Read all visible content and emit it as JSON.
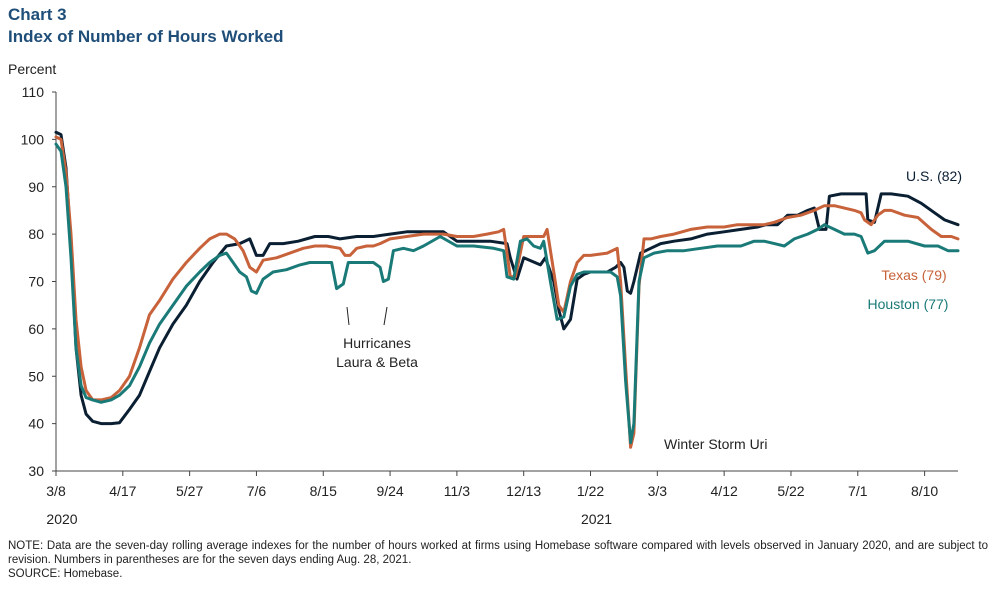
{
  "header": {
    "chart_label": "Chart 3",
    "title": "Index of Number of Hours Worked"
  },
  "colors": {
    "us": "#0b1f33",
    "texas": "#c8623a",
    "houston": "#1a7a78",
    "title": "#1f4e79"
  },
  "footnote": {
    "note": "NOTE: Data are the seven-day rolling average indexes for the number of hours worked at firms using Homebase software compared with levels observed in January 2020, and are subject to revision. Numbers in parentheses are for the seven days ending Aug. 28, 2021.",
    "source": "SOURCE: Homebase."
  },
  "chart_data": {
    "type": "line",
    "ylabel": "Percent",
    "ylim": [
      30,
      110
    ],
    "yticks": [
      30,
      40,
      50,
      60,
      70,
      80,
      90,
      100,
      110
    ],
    "xlim": [
      0,
      540
    ],
    "xticks": [
      {
        "pos": 0,
        "label": "3/8"
      },
      {
        "pos": 40,
        "label": "4/17"
      },
      {
        "pos": 80,
        "label": "5/27"
      },
      {
        "pos": 120,
        "label": "7/6"
      },
      {
        "pos": 160,
        "label": "8/15"
      },
      {
        "pos": 200,
        "label": "9/24"
      },
      {
        "pos": 240,
        "label": "11/3"
      },
      {
        "pos": 280,
        "label": "12/13"
      },
      {
        "pos": 320,
        "label": "1/22"
      },
      {
        "pos": 360,
        "label": "3/3"
      },
      {
        "pos": 400,
        "label": "4/12"
      },
      {
        "pos": 440,
        "label": "5/22"
      },
      {
        "pos": 480,
        "label": "7/1"
      },
      {
        "pos": 520,
        "label": "8/10"
      }
    ],
    "year_labels": [
      {
        "pos": 0,
        "label": "2020"
      },
      {
        "pos": 320,
        "label": "2021"
      }
    ],
    "series": [
      {
        "name": "U.S. (82)",
        "key": "us",
        "points": [
          [
            0,
            101.5
          ],
          [
            3,
            101
          ],
          [
            6,
            94
          ],
          [
            9,
            78
          ],
          [
            12,
            56
          ],
          [
            15,
            46
          ],
          [
            18,
            42
          ],
          [
            22,
            40.5
          ],
          [
            27,
            40
          ],
          [
            33,
            40
          ],
          [
            38,
            40.2
          ],
          [
            44,
            43
          ],
          [
            50,
            46
          ],
          [
            56,
            51
          ],
          [
            62,
            56
          ],
          [
            70,
            61
          ],
          [
            78,
            65
          ],
          [
            86,
            70
          ],
          [
            94,
            74
          ],
          [
            102,
            77.5
          ],
          [
            110,
            78
          ],
          [
            116,
            79
          ],
          [
            120,
            75.5
          ],
          [
            124,
            75.5
          ],
          [
            128,
            78
          ],
          [
            136,
            78
          ],
          [
            145,
            78.5
          ],
          [
            155,
            79.5
          ],
          [
            163,
            79.5
          ],
          [
            170,
            79
          ],
          [
            180,
            79.5
          ],
          [
            190,
            79.5
          ],
          [
            200,
            80
          ],
          [
            210,
            80.5
          ],
          [
            220,
            80.5
          ],
          [
            232,
            80.5
          ],
          [
            240,
            78.5
          ],
          [
            250,
            78.5
          ],
          [
            260,
            78.5
          ],
          [
            270,
            78
          ],
          [
            272,
            75
          ],
          [
            276,
            70.5
          ],
          [
            280,
            75
          ],
          [
            290,
            73.5
          ],
          [
            293,
            75
          ],
          [
            298,
            70
          ],
          [
            301,
            64
          ],
          [
            304,
            60
          ],
          [
            308,
            62
          ],
          [
            312,
            70.5
          ],
          [
            316,
            71.5
          ],
          [
            320,
            72
          ],
          [
            330,
            72
          ],
          [
            335,
            73
          ],
          [
            338,
            74
          ],
          [
            340,
            73
          ],
          [
            342,
            68
          ],
          [
            344,
            67.5
          ],
          [
            346,
            70
          ],
          [
            350,
            76
          ],
          [
            356,
            77
          ],
          [
            362,
            78
          ],
          [
            370,
            78.5
          ],
          [
            380,
            79
          ],
          [
            390,
            80
          ],
          [
            400,
            80.5
          ],
          [
            410,
            81
          ],
          [
            420,
            81.5
          ],
          [
            425,
            82
          ],
          [
            432,
            82
          ],
          [
            438,
            84
          ],
          [
            444,
            84
          ],
          [
            450,
            85
          ],
          [
            454,
            85.5
          ],
          [
            457,
            81
          ],
          [
            461,
            81
          ],
          [
            463,
            88
          ],
          [
            470,
            88.5
          ],
          [
            477,
            88.5
          ],
          [
            482,
            88.5
          ],
          [
            485,
            88.5
          ],
          [
            486,
            83
          ],
          [
            490,
            82.5
          ],
          [
            494,
            88.5
          ],
          [
            500,
            88.5
          ],
          [
            510,
            88
          ],
          [
            518,
            86.5
          ],
          [
            526,
            84.5
          ],
          [
            532,
            83
          ],
          [
            540,
            82
          ]
        ]
      },
      {
        "name": "Texas (79)",
        "key": "texas",
        "points": [
          [
            0,
            100.5
          ],
          [
            3,
            100
          ],
          [
            6,
            93
          ],
          [
            9,
            80
          ],
          [
            12,
            62
          ],
          [
            15,
            52
          ],
          [
            18,
            47
          ],
          [
            22,
            45
          ],
          [
            27,
            45
          ],
          [
            33,
            45.5
          ],
          [
            38,
            47
          ],
          [
            44,
            50
          ],
          [
            50,
            56
          ],
          [
            56,
            63
          ],
          [
            62,
            66
          ],
          [
            70,
            70.5
          ],
          [
            78,
            74
          ],
          [
            86,
            77
          ],
          [
            92,
            79
          ],
          [
            98,
            80
          ],
          [
            102,
            80
          ],
          [
            107,
            79
          ],
          [
            112,
            76.5
          ],
          [
            116,
            73
          ],
          [
            120,
            72
          ],
          [
            124,
            74.5
          ],
          [
            132,
            75
          ],
          [
            140,
            76
          ],
          [
            148,
            77
          ],
          [
            155,
            77.5
          ],
          [
            162,
            77.5
          ],
          [
            170,
            77
          ],
          [
            173,
            75.5
          ],
          [
            176,
            75.5
          ],
          [
            180,
            77
          ],
          [
            186,
            77.5
          ],
          [
            190,
            77.5
          ],
          [
            194,
            78
          ],
          [
            200,
            79
          ],
          [
            210,
            79.5
          ],
          [
            220,
            80
          ],
          [
            232,
            80
          ],
          [
            240,
            79.5
          ],
          [
            250,
            79.5
          ],
          [
            258,
            80
          ],
          [
            265,
            80.5
          ],
          [
            268,
            81
          ],
          [
            272,
            71
          ],
          [
            275,
            71
          ],
          [
            280,
            79.5
          ],
          [
            288,
            79.5
          ],
          [
            292,
            79.5
          ],
          [
            294,
            81
          ],
          [
            298,
            72
          ],
          [
            301,
            65
          ],
          [
            304,
            63.5
          ],
          [
            308,
            70
          ],
          [
            312,
            74
          ],
          [
            316,
            75.5
          ],
          [
            320,
            75.5
          ],
          [
            330,
            76
          ],
          [
            336,
            77
          ],
          [
            338,
            70
          ],
          [
            341,
            52
          ],
          [
            344,
            35
          ],
          [
            346,
            38
          ],
          [
            349,
            69
          ],
          [
            352,
            79
          ],
          [
            356,
            79
          ],
          [
            362,
            79.5
          ],
          [
            370,
            80
          ],
          [
            380,
            81
          ],
          [
            390,
            81.5
          ],
          [
            400,
            81.5
          ],
          [
            408,
            82
          ],
          [
            416,
            82
          ],
          [
            424,
            82
          ],
          [
            430,
            82.5
          ],
          [
            438,
            83.5
          ],
          [
            446,
            84
          ],
          [
            454,
            85
          ],
          [
            460,
            86
          ],
          [
            466,
            86
          ],
          [
            472,
            85.5
          ],
          [
            478,
            85
          ],
          [
            482,
            84.5
          ],
          [
            484,
            83
          ],
          [
            488,
            82
          ],
          [
            492,
            84
          ],
          [
            496,
            85
          ],
          [
            500,
            85
          ],
          [
            508,
            84
          ],
          [
            516,
            83.5
          ],
          [
            524,
            81
          ],
          [
            530,
            79.5
          ],
          [
            536,
            79.5
          ],
          [
            540,
            79
          ]
        ]
      },
      {
        "name": "Houston (77)",
        "key": "houston",
        "points": [
          [
            0,
            99
          ],
          [
            3,
            97.5
          ],
          [
            6,
            90
          ],
          [
            9,
            75
          ],
          [
            12,
            56
          ],
          [
            15,
            48
          ],
          [
            18,
            45.5
          ],
          [
            22,
            45
          ],
          [
            27,
            44.5
          ],
          [
            33,
            45
          ],
          [
            38,
            46
          ],
          [
            44,
            48
          ],
          [
            50,
            52
          ],
          [
            56,
            57
          ],
          [
            62,
            61
          ],
          [
            70,
            65
          ],
          [
            78,
            69
          ],
          [
            86,
            72
          ],
          [
            92,
            74
          ],
          [
            98,
            75.5
          ],
          [
            102,
            76
          ],
          [
            106,
            74
          ],
          [
            110,
            72
          ],
          [
            114,
            71
          ],
          [
            117,
            68
          ],
          [
            120,
            67.5
          ],
          [
            124,
            70.5
          ],
          [
            130,
            72
          ],
          [
            138,
            72.5
          ],
          [
            146,
            73.5
          ],
          [
            152,
            74
          ],
          [
            160,
            74
          ],
          [
            165,
            74
          ],
          [
            168,
            68.5
          ],
          [
            172,
            69.5
          ],
          [
            175,
            74
          ],
          [
            180,
            74
          ],
          [
            190,
            74
          ],
          [
            194,
            73
          ],
          [
            196,
            70
          ],
          [
            199,
            70.5
          ],
          [
            202,
            76.5
          ],
          [
            208,
            77
          ],
          [
            214,
            76.5
          ],
          [
            220,
            77.5
          ],
          [
            230,
            79.5
          ],
          [
            240,
            77.5
          ],
          [
            250,
            77.5
          ],
          [
            262,
            77
          ],
          [
            268,
            76.5
          ],
          [
            270,
            71
          ],
          [
            274,
            70.5
          ],
          [
            278,
            78.5
          ],
          [
            282,
            79
          ],
          [
            286,
            77.5
          ],
          [
            290,
            77
          ],
          [
            292,
            78.5
          ],
          [
            296,
            70
          ],
          [
            300,
            62
          ],
          [
            304,
            62.5
          ],
          [
            308,
            69
          ],
          [
            312,
            71.5
          ],
          [
            316,
            72
          ],
          [
            326,
            72
          ],
          [
            332,
            72
          ],
          [
            336,
            71
          ],
          [
            338,
            67
          ],
          [
            341,
            49
          ],
          [
            344,
            36
          ],
          [
            346,
            40
          ],
          [
            349,
            70
          ],
          [
            352,
            75
          ],
          [
            358,
            76
          ],
          [
            366,
            76.5
          ],
          [
            376,
            76.5
          ],
          [
            386,
            77
          ],
          [
            396,
            77.5
          ],
          [
            404,
            77.5
          ],
          [
            410,
            77.5
          ],
          [
            418,
            78.5
          ],
          [
            424,
            78.5
          ],
          [
            430,
            78
          ],
          [
            436,
            77.5
          ],
          [
            442,
            79
          ],
          [
            450,
            80
          ],
          [
            456,
            81
          ],
          [
            460,
            82
          ],
          [
            466,
            81
          ],
          [
            472,
            80
          ],
          [
            478,
            80
          ],
          [
            482,
            79.5
          ],
          [
            486,
            76
          ],
          [
            490,
            76.5
          ],
          [
            496,
            78.5
          ],
          [
            502,
            78.5
          ],
          [
            510,
            78.5
          ],
          [
            520,
            77.5
          ],
          [
            528,
            77.5
          ],
          [
            534,
            76.5
          ],
          [
            540,
            76.5
          ]
        ]
      }
    ],
    "series_labels": [
      {
        "key": "us",
        "text": "U.S. (82)"
      },
      {
        "key": "texas",
        "text": "Texas (79)"
      },
      {
        "key": "houston",
        "text": "Houston (77)"
      }
    ],
    "annotations": [
      {
        "id": "hurricanes",
        "line1": "Hurricanes",
        "line2": "Laura & Beta"
      },
      {
        "id": "storm",
        "text": "Winter Storm Uri"
      }
    ]
  }
}
